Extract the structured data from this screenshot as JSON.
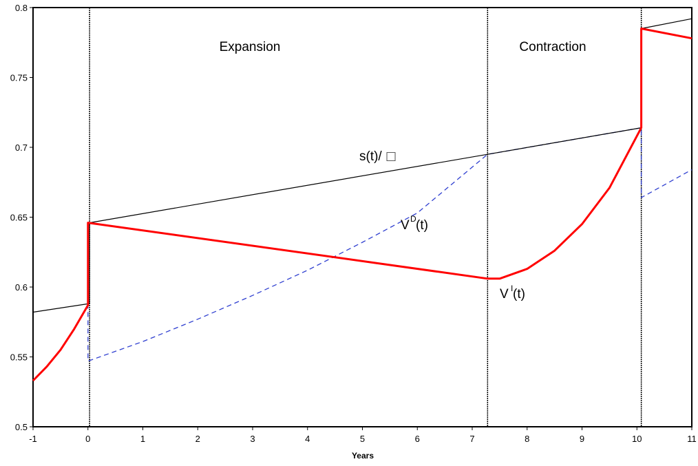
{
  "chart_data": {
    "type": "line",
    "xlabel": "Years",
    "ylabel": "",
    "xlim": [
      -1,
      11
    ],
    "ylim": [
      0.5,
      0.8
    ],
    "x_ticks": [
      "-1",
      "0",
      "1",
      "2",
      "3",
      "4",
      "5",
      "6",
      "7",
      "8",
      "9",
      "10",
      "11"
    ],
    "y_ticks": [
      "0.5",
      "0.55",
      "0.6",
      "0.65",
      "0.7",
      "0.75",
      "0.8"
    ],
    "regime_boundaries": [
      0.03,
      7.28,
      10.08
    ],
    "regime_labels": {
      "expansion": "Expansion",
      "contraction": "Contraction"
    },
    "series_labels": {
      "s_main": "s(t)/",
      "s_symbol": "□",
      "vd_main": "V",
      "vd_sup": "D",
      "vd_arg": "(t)",
      "vi_main": "V",
      "vi_sup": "I",
      "vi_arg": "(t)"
    },
    "series": [
      {
        "label_key": "s",
        "color": "#000000",
        "style": "solid",
        "points": [
          [
            -1,
            0.582
          ],
          [
            0.0,
            0.588
          ],
          [
            0.03,
            0.588
          ],
          [
            0.03,
            0.646
          ],
          [
            7.28,
            0.695
          ],
          [
            10.08,
            0.714
          ],
          [
            10.08,
            0.785
          ],
          [
            11,
            0.792
          ]
        ]
      },
      {
        "label_key": "VD",
        "color": "#2f3fd0",
        "style": "dashed",
        "points": [
          [
            0.0,
            0.588
          ],
          [
            0.0,
            0.547
          ],
          [
            1.0,
            0.561
          ],
          [
            2.0,
            0.577
          ],
          [
            3.0,
            0.594
          ],
          [
            4.0,
            0.612
          ],
          [
            5.0,
            0.632
          ],
          [
            6.0,
            0.653
          ],
          [
            7.28,
            0.695
          ],
          [
            10.08,
            0.714
          ],
          [
            10.08,
            0.664
          ],
          [
            11,
            0.684
          ]
        ]
      },
      {
        "label_key": "VI",
        "color": "#ff0000",
        "style": "solid",
        "points": [
          [
            -1,
            0.533
          ],
          [
            -0.75,
            0.543
          ],
          [
            -0.5,
            0.555
          ],
          [
            -0.25,
            0.57
          ],
          [
            0.0,
            0.587
          ],
          [
            0.0,
            0.646
          ],
          [
            7.28,
            0.606
          ],
          [
            7.5,
            0.606
          ],
          [
            8.0,
            0.613
          ],
          [
            8.5,
            0.626
          ],
          [
            9.0,
            0.645
          ],
          [
            9.5,
            0.671
          ],
          [
            10.08,
            0.714
          ],
          [
            10.08,
            0.785
          ],
          [
            11,
            0.778
          ]
        ]
      }
    ]
  }
}
